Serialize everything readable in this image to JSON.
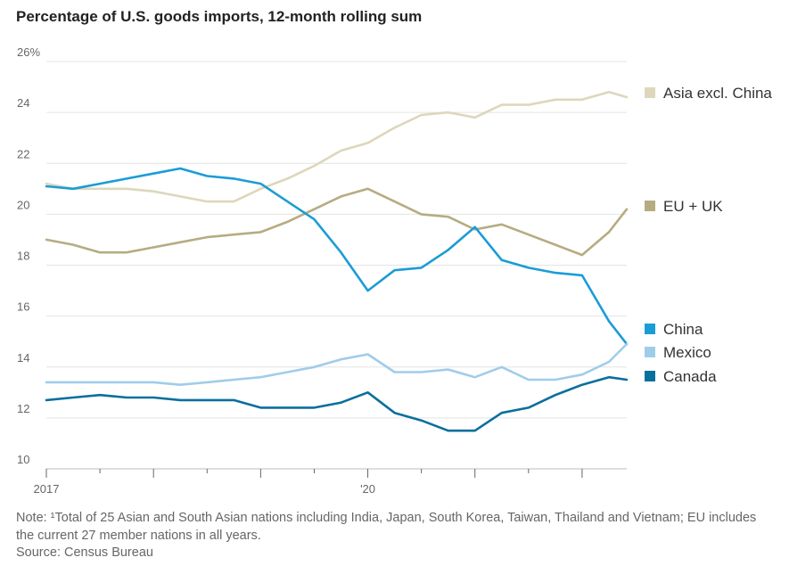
{
  "title": "Percentage of U.S. goods imports, 12-month rolling sum",
  "note": "Note: ¹Total of 25 Asian and South Asian nations including India, Japan, South Korea, Taiwan, Thailand and Vietnam; EU includes the current 27 member nations in all years.",
  "source": "Source: Census Bureau",
  "chart_data": {
    "type": "line",
    "title": "Percentage of U.S. goods imports, 12-month rolling sum",
    "xlabel": "",
    "ylabel": "",
    "ylim": [
      10,
      26
    ],
    "yticks": [
      10,
      12,
      14,
      16,
      18,
      20,
      22,
      24,
      26
    ],
    "ytick_labels": [
      "10",
      "12",
      "14",
      "16",
      "18",
      "20",
      "22",
      "24",
      "26%"
    ],
    "xlim": [
      "2017-01",
      "2022-06"
    ],
    "xtick_labels": [
      {
        "x": "2017-01",
        "label": "2017"
      },
      {
        "x": "2020-01",
        "label": "'20"
      }
    ],
    "grid": "horizontal",
    "legend": "right, end of lines",
    "series": [
      {
        "name": "Asia excl. China",
        "color": "#ddd7bb",
        "x": [
          "2017-01",
          "2017-04",
          "2017-07",
          "2017-10",
          "2018-01",
          "2018-04",
          "2018-07",
          "2018-10",
          "2019-01",
          "2019-04",
          "2019-07",
          "2019-10",
          "2020-01",
          "2020-04",
          "2020-07",
          "2020-10",
          "2021-01",
          "2021-04",
          "2021-07",
          "2021-10",
          "2022-01",
          "2022-04",
          "2022-06"
        ],
        "values": [
          21.2,
          21.0,
          21.0,
          21.0,
          20.9,
          20.7,
          20.5,
          20.5,
          21.0,
          21.4,
          21.9,
          22.5,
          22.8,
          23.4,
          23.9,
          24.0,
          23.8,
          24.3,
          24.3,
          24.5,
          24.5,
          24.8,
          24.6
        ]
      },
      {
        "name": "EU + UK",
        "color": "#b6ac82",
        "x": [
          "2017-01",
          "2017-04",
          "2017-07",
          "2017-10",
          "2018-01",
          "2018-04",
          "2018-07",
          "2018-10",
          "2019-01",
          "2019-04",
          "2019-07",
          "2019-10",
          "2020-01",
          "2020-04",
          "2020-07",
          "2020-10",
          "2021-01",
          "2021-04",
          "2021-07",
          "2021-10",
          "2022-01",
          "2022-04",
          "2022-06"
        ],
        "values": [
          19.0,
          18.8,
          18.5,
          18.5,
          18.7,
          18.9,
          19.1,
          19.2,
          19.3,
          19.7,
          20.2,
          20.7,
          21.0,
          20.5,
          20.0,
          19.9,
          19.4,
          19.6,
          19.2,
          18.8,
          18.4,
          19.3,
          20.2
        ]
      },
      {
        "name": "China",
        "color": "#1b9cd6",
        "x": [
          "2017-01",
          "2017-04",
          "2017-07",
          "2017-10",
          "2018-01",
          "2018-04",
          "2018-07",
          "2018-10",
          "2019-01",
          "2019-04",
          "2019-07",
          "2019-10",
          "2020-01",
          "2020-04",
          "2020-07",
          "2020-10",
          "2021-01",
          "2021-04",
          "2021-07",
          "2021-10",
          "2022-01",
          "2022-04",
          "2022-06"
        ],
        "values": [
          21.1,
          21.0,
          21.2,
          21.4,
          21.6,
          21.8,
          21.5,
          21.4,
          21.2,
          20.5,
          19.8,
          18.5,
          17.0,
          17.8,
          17.9,
          18.6,
          19.5,
          18.2,
          17.9,
          17.7,
          17.6,
          15.8,
          14.9
        ]
      },
      {
        "name": "Mexico",
        "color": "#9fcde9",
        "x": [
          "2017-01",
          "2017-04",
          "2017-07",
          "2017-10",
          "2018-01",
          "2018-04",
          "2018-07",
          "2018-10",
          "2019-01",
          "2019-04",
          "2019-07",
          "2019-10",
          "2020-01",
          "2020-04",
          "2020-07",
          "2020-10",
          "2021-01",
          "2021-04",
          "2021-07",
          "2021-10",
          "2022-01",
          "2022-04",
          "2022-06"
        ],
        "values": [
          13.4,
          13.4,
          13.4,
          13.4,
          13.4,
          13.3,
          13.4,
          13.5,
          13.6,
          13.8,
          14.0,
          14.3,
          14.5,
          13.8,
          13.8,
          13.9,
          13.6,
          14.0,
          13.5,
          13.5,
          13.7,
          14.2,
          14.9
        ]
      },
      {
        "name": "Canada",
        "color": "#0a6f9d",
        "x": [
          "2017-01",
          "2017-04",
          "2017-07",
          "2017-10",
          "2018-01",
          "2018-04",
          "2018-07",
          "2018-10",
          "2019-01",
          "2019-04",
          "2019-07",
          "2019-10",
          "2020-01",
          "2020-04",
          "2020-07",
          "2020-10",
          "2021-01",
          "2021-04",
          "2021-07",
          "2021-10",
          "2022-01",
          "2022-04",
          "2022-06"
        ],
        "values": [
          12.7,
          12.8,
          12.9,
          12.8,
          12.8,
          12.7,
          12.7,
          12.7,
          12.4,
          12.4,
          12.4,
          12.6,
          13.0,
          12.2,
          11.9,
          11.5,
          11.5,
          12.2,
          12.4,
          12.9,
          13.3,
          13.6,
          13.5
        ]
      }
    ]
  }
}
